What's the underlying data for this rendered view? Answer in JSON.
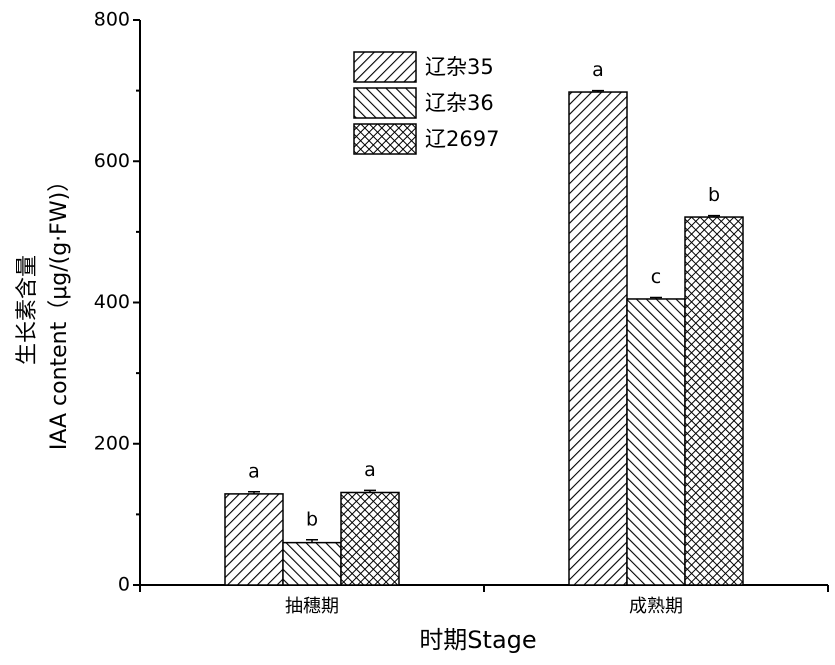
{
  "chart_data": {
    "type": "bar",
    "x_label": "时期Stage",
    "y_label": [
      "生长素含量",
      "IAA content（μg/(g·FW)）"
    ],
    "categories": [
      "抽穗期",
      "成熟期"
    ],
    "series": [
      {
        "name": "辽杂35",
        "color": "#000000",
        "hatch": "/",
        "values": [
          129,
          698
        ],
        "errors": [
          3,
          2
        ],
        "annotations": [
          "a",
          "a"
        ]
      },
      {
        "name": "辽杂36",
        "color": "#000000",
        "hatch": "\\",
        "values": [
          60,
          405
        ],
        "errors": [
          4,
          2
        ],
        "annotations": [
          "b",
          "c"
        ]
      },
      {
        "name": "辽2697",
        "color": "#000000",
        "hatch": "x",
        "values": [
          131,
          521
        ],
        "errors": [
          3,
          2
        ],
        "annotations": [
          "a",
          "b"
        ]
      }
    ],
    "ylim": [
      0,
      800
    ],
    "yticks": [
      0,
      200,
      400,
      600,
      800
    ],
    "minor_yticks": [
      100,
      300,
      500,
      700
    ],
    "legend": "top-center"
  }
}
